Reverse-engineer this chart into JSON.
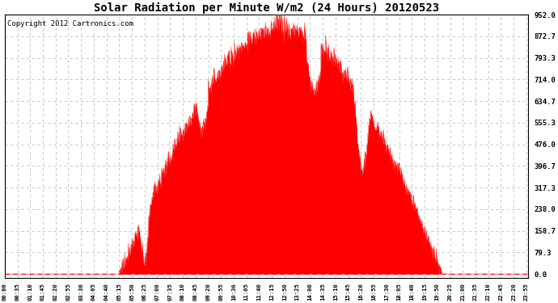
{
  "title": "Solar Radiation per Minute W/m2 (24 Hours) 20120523",
  "copyright_text": "Copyright 2012 Cartronics.com",
  "yticks": [
    0.0,
    79.3,
    158.7,
    238.0,
    317.3,
    396.7,
    476.0,
    555.3,
    634.7,
    714.0,
    793.3,
    872.7,
    952.0
  ],
  "ymax": 952.0,
  "ymin": -15.0,
  "fill_color": "red",
  "line_color": "red",
  "dashed_line_color": "red",
  "grid_color": "#bbbbbb",
  "background_color": "white",
  "title_fontsize": 10,
  "copyright_fontsize": 6.5,
  "xtick_step": 35
}
